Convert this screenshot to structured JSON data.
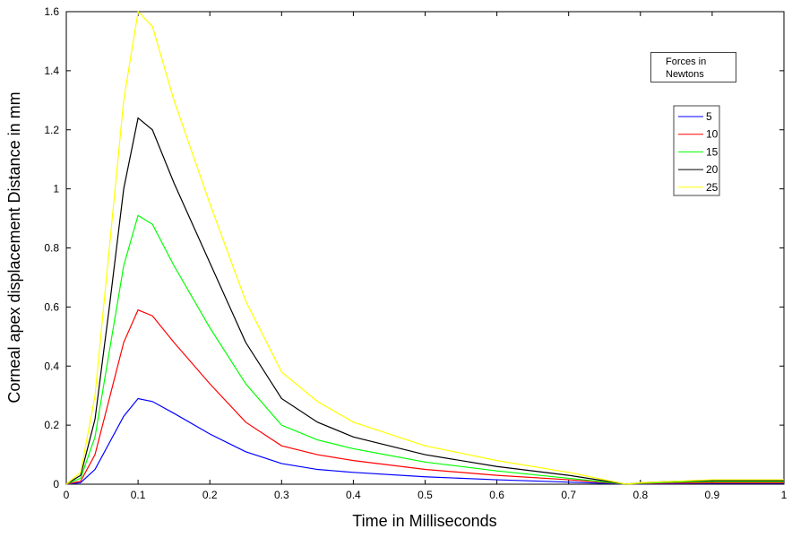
{
  "chart_data": {
    "type": "line",
    "x_label": "Time in Milliseconds",
    "y_label": "Corneal apex displacement Distance in mm",
    "legend_title": "Forces in Newtons",
    "x": [
      0,
      0.02,
      0.04,
      0.06,
      0.08,
      0.1,
      0.12,
      0.15,
      0.2,
      0.25,
      0.3,
      0.35,
      0.4,
      0.5,
      0.6,
      0.7,
      0.78,
      0.8,
      0.85,
      0.9,
      1.0
    ],
    "series": [
      {
        "name": "5",
        "color": "#0000ff",
        "values": [
          0,
          0.005,
          0.05,
          0.14,
          0.23,
          0.29,
          0.28,
          0.24,
          0.17,
          0.11,
          0.07,
          0.05,
          0.04,
          0.025,
          0.015,
          0.007,
          0,
          0.001,
          0.002,
          0.003,
          0.003
        ]
      },
      {
        "name": "10",
        "color": "#ff0000",
        "values": [
          0,
          0.01,
          0.1,
          0.29,
          0.48,
          0.59,
          0.57,
          0.48,
          0.34,
          0.21,
          0.13,
          0.1,
          0.08,
          0.05,
          0.03,
          0.015,
          0,
          0.002,
          0.004,
          0.005,
          0.005
        ]
      },
      {
        "name": "15",
        "color": "#00ff00",
        "values": [
          0,
          0.02,
          0.16,
          0.45,
          0.74,
          0.91,
          0.88,
          0.74,
          0.53,
          0.34,
          0.2,
          0.15,
          0.12,
          0.075,
          0.045,
          0.02,
          0,
          0.003,
          0.007,
          0.009,
          0.009
        ]
      },
      {
        "name": "20",
        "color": "#000000",
        "values": [
          0,
          0.03,
          0.22,
          0.6,
          1.0,
          1.24,
          1.2,
          1.02,
          0.75,
          0.48,
          0.29,
          0.21,
          0.16,
          0.1,
          0.06,
          0.03,
          0,
          0.005,
          0.01,
          0.012,
          0.012
        ]
      },
      {
        "name": "25",
        "color": "#ffff00",
        "values": [
          0,
          0.04,
          0.3,
          0.8,
          1.3,
          1.6,
          1.55,
          1.3,
          0.95,
          0.62,
          0.38,
          0.28,
          0.21,
          0.13,
          0.08,
          0.04,
          0,
          0.005,
          0.01,
          0.015,
          0.015
        ]
      }
    ],
    "xlim": [
      0,
      1
    ],
    "xticks": [
      0,
      0.1,
      0.2,
      0.3,
      0.4,
      0.5,
      0.6,
      0.7,
      0.8,
      0.9,
      1
    ],
    "ylim": [
      0,
      1.6
    ],
    "yticks": [
      0,
      0.2,
      0.4,
      0.6,
      0.8,
      1,
      1.2,
      1.4,
      1.6
    ],
    "grid": false
  }
}
